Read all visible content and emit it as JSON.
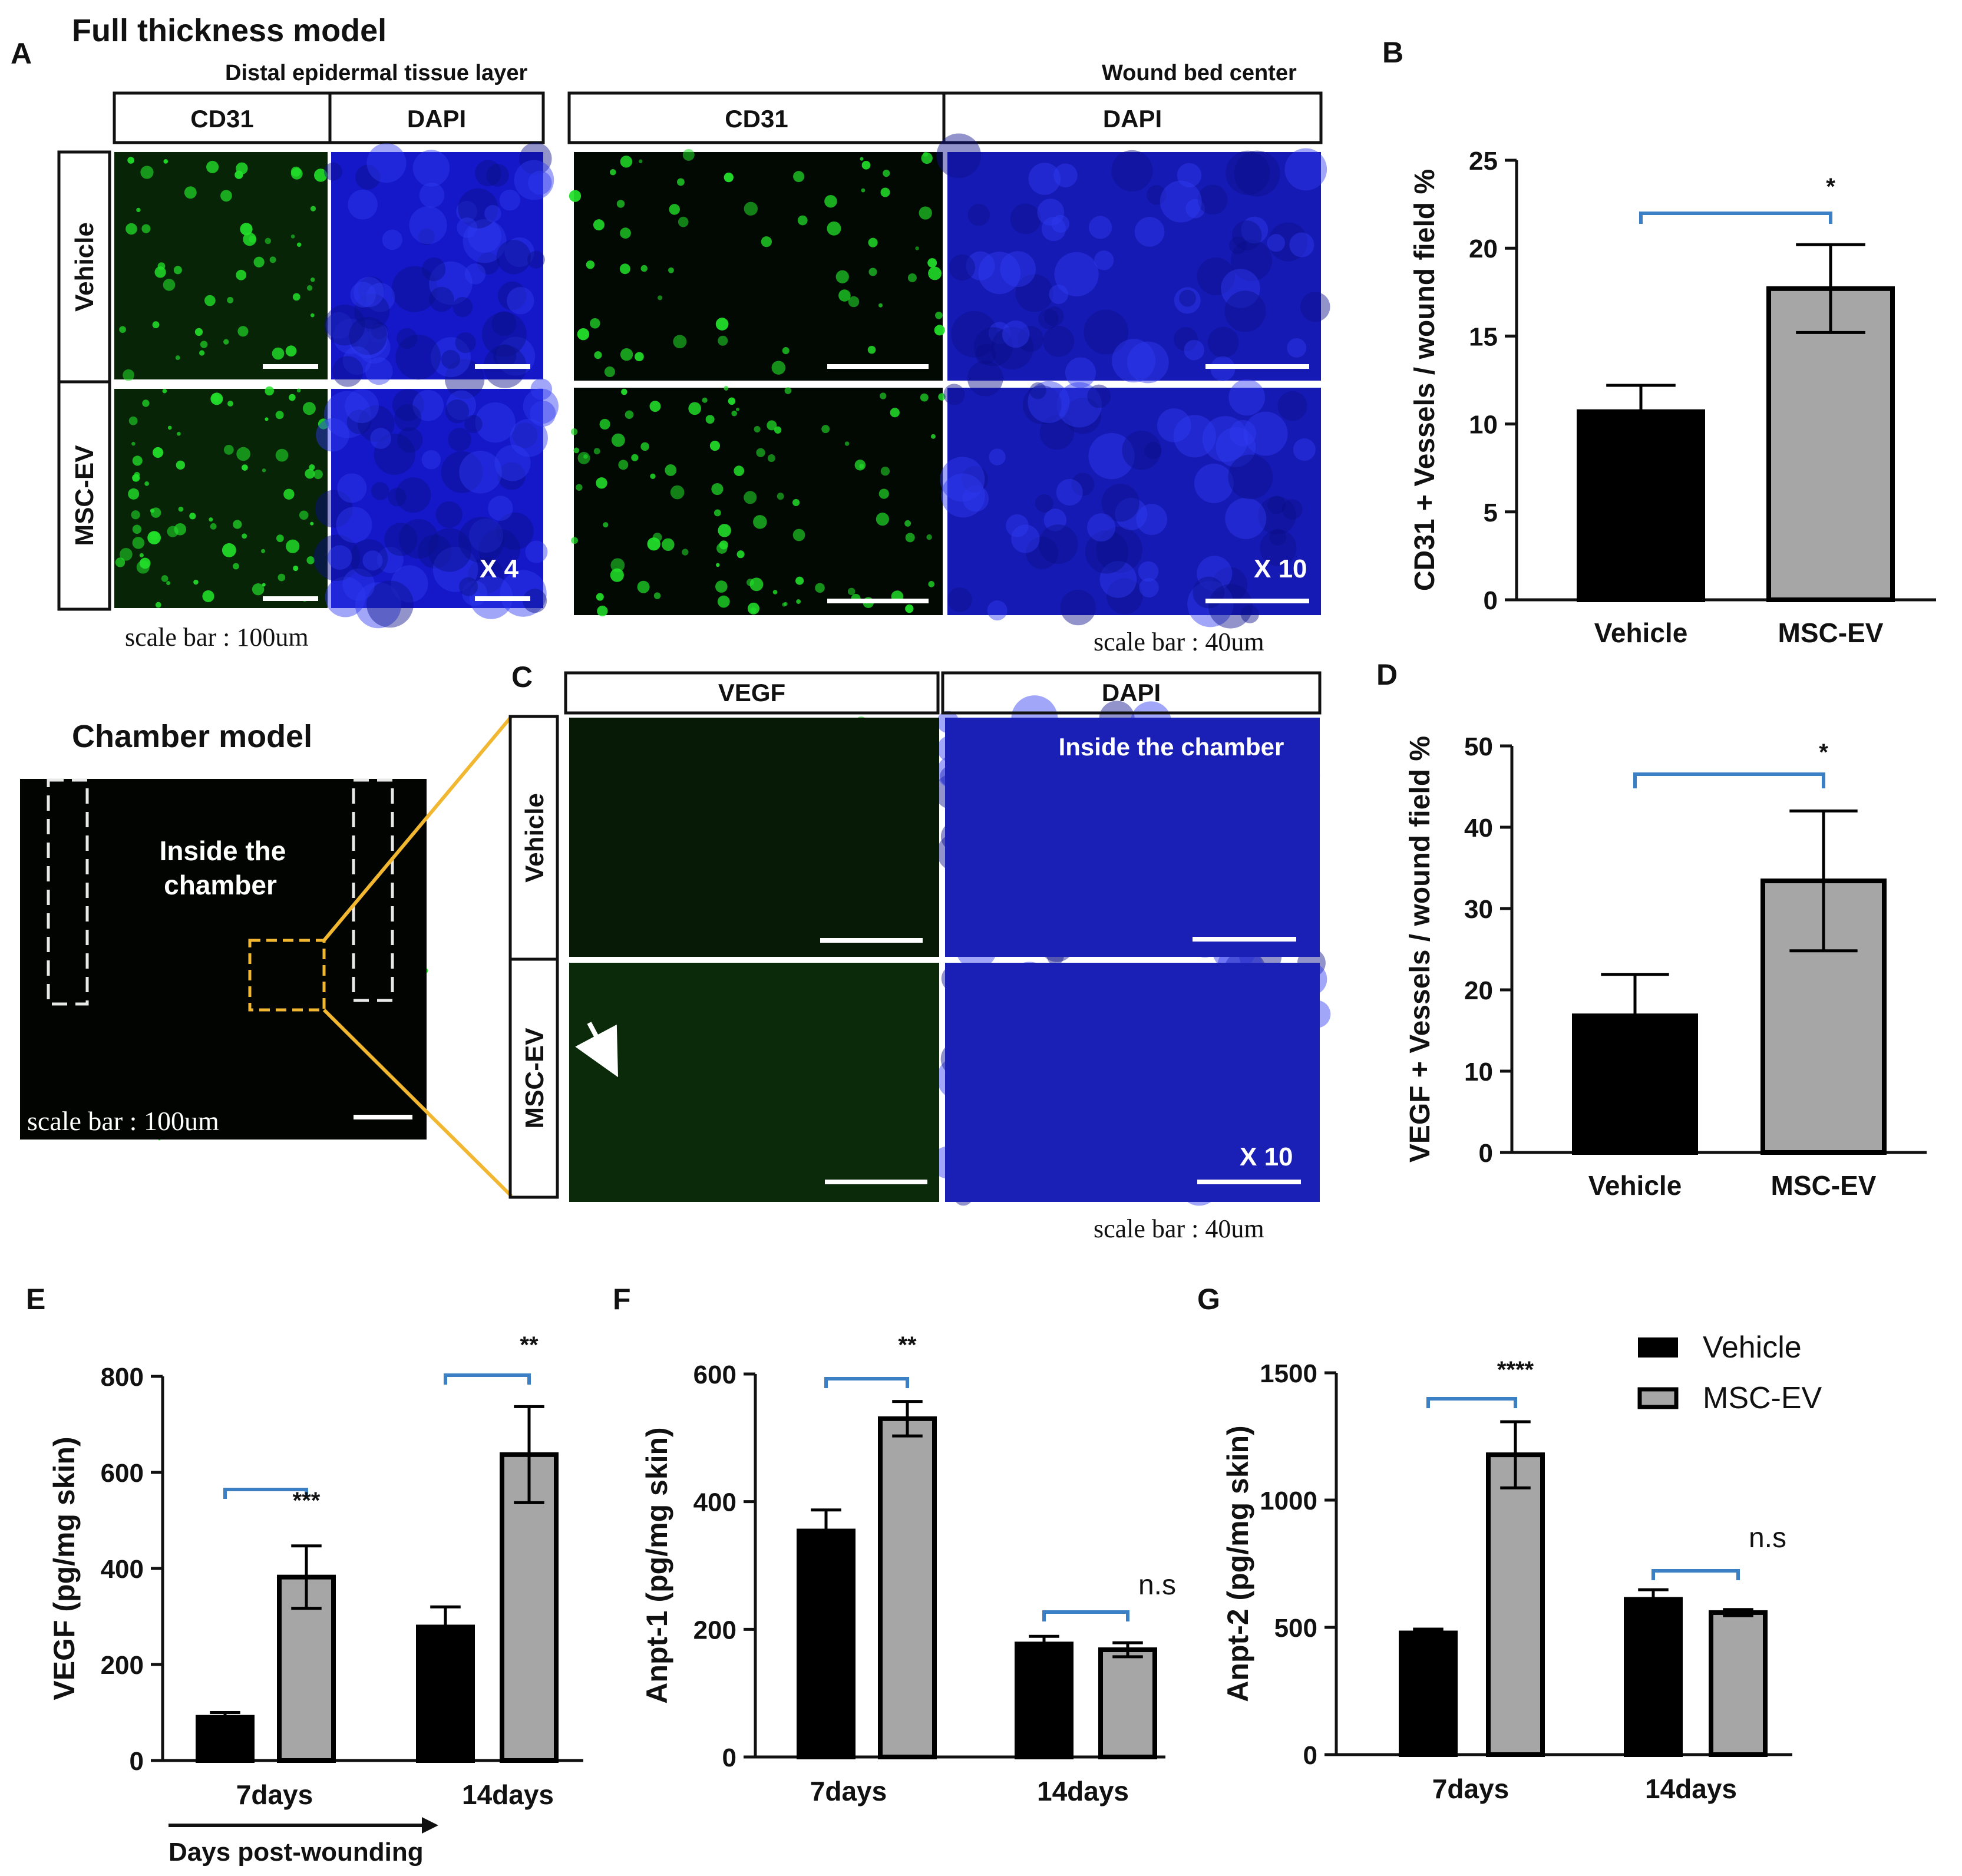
{
  "panel_letters": {
    "a": "A",
    "b": "B",
    "c": "C",
    "d": "D",
    "e": "E",
    "f": "F",
    "g": "G"
  },
  "panel_a": {
    "title": "Full thickness model",
    "distal_label": "Distal epidermal tissue layer",
    "wound_label": "Wound bed center",
    "col_cd31": "CD31",
    "col_dapi": "DAPI",
    "row_vehicle": "Vehicle",
    "row_mscev": "MSC-EV",
    "mag_left": "X 4",
    "mag_right": "X 10",
    "scale_left": "scale bar : 100um",
    "scale_right": "scale bar : 40um"
  },
  "chamber": {
    "title": "Chamber model",
    "inside_line1": "Inside the",
    "inside_line2": "chamber",
    "scale": "scale bar : 100um"
  },
  "panel_c": {
    "col_vegf": "VEGF",
    "col_dapi": "DAPI",
    "row_vehicle": "Vehicle",
    "row_mscev": "MSC-EV",
    "inside": "Inside the chamber",
    "mag": "X 10",
    "scale": "scale bar : 40um"
  },
  "legend": {
    "vehicle": "Vehicle",
    "mscev": "MSC-EV"
  },
  "colors": {
    "vehicle": "#000000",
    "mscev": "#a6a6a6",
    "bracket": "#3b7fc4",
    "fluor_green": "#1fd12b",
    "fluor_blue": "#1f2ad6"
  },
  "chart_data": [
    {
      "id": "B",
      "type": "bar",
      "ylabel": "CD31 + Vessels / wound field %",
      "categories": [
        "Vehicle",
        "MSC-EV"
      ],
      "values": [
        10.7,
        17.7
      ],
      "errors": [
        1.5,
        2.5
      ],
      "ylim": [
        0,
        25
      ],
      "yticks": [
        0,
        5,
        10,
        15,
        20,
        25
      ],
      "brackets": [
        {
          "from": 0,
          "to": 1,
          "label": "*"
        }
      ]
    },
    {
      "id": "D",
      "type": "bar",
      "ylabel": "VEGF + Vessels / wound field %",
      "categories": [
        "Vehicle",
        "MSC-EV"
      ],
      "values": [
        16.8,
        33.4
      ],
      "errors": [
        5.1,
        8.6
      ],
      "ylim": [
        0,
        50
      ],
      "yticks": [
        0,
        10,
        20,
        30,
        40,
        50
      ],
      "brackets": [
        {
          "from": 0,
          "to": 1,
          "label": "*"
        }
      ]
    },
    {
      "id": "E",
      "type": "bar",
      "ylabel": "VEGF (pg/mg skin)",
      "xnote": "Days post-wounding",
      "categories": [
        "7days",
        "14days"
      ],
      "series": [
        {
          "name": "Vehicle",
          "values": [
            90,
            278
          ],
          "errors": [
            10,
            42
          ]
        },
        {
          "name": "MSC-EV",
          "values": [
            382,
            637
          ],
          "errors": [
            65,
            100
          ]
        }
      ],
      "ylim": [
        0,
        800
      ],
      "yticks": [
        0,
        200,
        400,
        600,
        800
      ],
      "brackets": [
        {
          "group": 0,
          "label": "***"
        },
        {
          "group": 1,
          "label": "**"
        }
      ]
    },
    {
      "id": "F",
      "type": "bar",
      "ylabel": "Anpt-1 (pg/mg skin)",
      "categories": [
        "7days",
        "14days"
      ],
      "series": [
        {
          "name": "Vehicle",
          "values": [
            354,
            177
          ],
          "errors": [
            33,
            12
          ]
        },
        {
          "name": "MSC-EV",
          "values": [
            530,
            168
          ],
          "errors": [
            27,
            11
          ]
        }
      ],
      "ylim": [
        0,
        600
      ],
      "yticks": [
        0,
        200,
        400,
        600
      ],
      "brackets": [
        {
          "group": 0,
          "label": "**"
        },
        {
          "group": 1,
          "label": "n.s"
        }
      ]
    },
    {
      "id": "G",
      "type": "bar",
      "ylabel": "Anpt-2 (pg/mg skin)",
      "categories": [
        "7days",
        "14days"
      ],
      "series": [
        {
          "name": "Vehicle",
          "values": [
            478,
            610
          ],
          "errors": [
            15,
            38
          ]
        },
        {
          "name": "MSC-EV",
          "values": [
            1178,
            558
          ],
          "errors": [
            130,
            12
          ]
        }
      ],
      "ylim": [
        0,
        1500
      ],
      "yticks": [
        0,
        500,
        1000,
        1500
      ],
      "brackets": [
        {
          "group": 0,
          "label": "****"
        },
        {
          "group": 1,
          "label": "n.s"
        }
      ]
    }
  ]
}
